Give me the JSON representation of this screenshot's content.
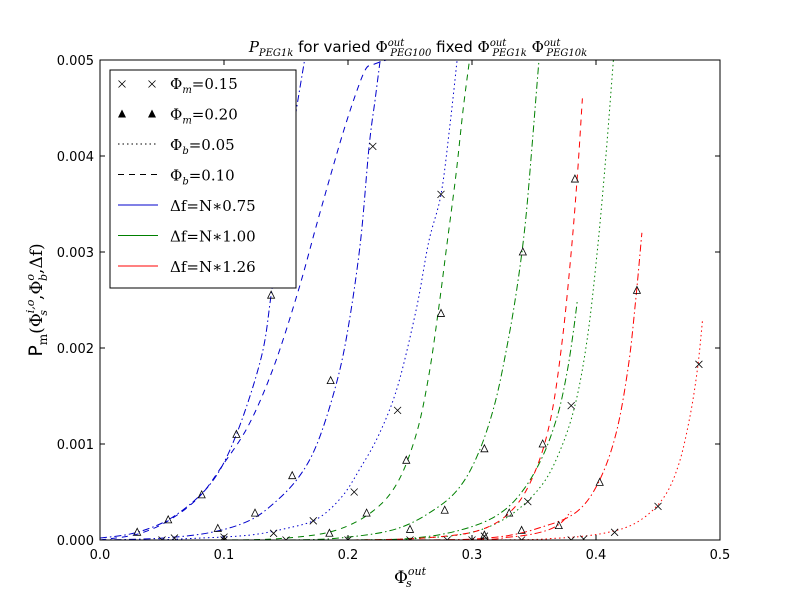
{
  "chart_data": {
    "type": "line",
    "title": "P_PEG1k for varied Φ^out_PEG100 fixed Φ^out_PEG1k Φ^out_PEG10k",
    "title_parts": {
      "p": "P",
      "p_sub": "PEG1k",
      "for_text": "for varied",
      "phi1": "Φ",
      "phi1_sup": "out",
      "phi1_sub": "PEG100",
      "fixed_text": "fixed",
      "phi2": "Φ",
      "phi2_sup": "out",
      "phi2_sub": "PEG1k",
      "phi3": "Φ",
      "phi3_sup": "out",
      "phi3_sub": "PEG10k"
    },
    "xlabel": "Φ_s^out",
    "xlabel_parts": {
      "base": "Φ",
      "sup": "out",
      "sub": "s"
    },
    "ylabel": "P_m(Φ_s^{i,o}, Φ_b^o, Δf)",
    "ylabel_parts": {
      "p": "P",
      "p_sub": "m",
      "open": "(Φ",
      "a_sup": "i,o",
      "a_sub": "s",
      "mid": ",Φ",
      "b_sup": "o",
      "b_sub": "b",
      "end": ",Δf)"
    },
    "xlim": [
      0.0,
      0.5
    ],
    "ylim": [
      0.0,
      0.005
    ],
    "x_ticks": [
      0.0,
      0.1,
      0.2,
      0.3,
      0.4,
      0.5
    ],
    "x_tick_labels": [
      "0.0",
      "0.1",
      "0.2",
      "0.3",
      "0.4",
      "0.5"
    ],
    "y_ticks": [
      0.0,
      0.001,
      0.002,
      0.003,
      0.004,
      0.005
    ],
    "y_tick_labels": [
      "0.000",
      "0.001",
      "0.002",
      "0.003",
      "0.004",
      "0.005"
    ],
    "grid": false,
    "legend_position": "top-left",
    "legend": [
      {
        "label": "Φm = 0.15",
        "base": "Φ",
        "sub": "m",
        "eq": "=0.15",
        "kind": "marker-x"
      },
      {
        "label": "Φm = 0.20",
        "base": "Φ",
        "sub": "m",
        "eq": "=0.20",
        "kind": "marker-triangle"
      },
      {
        "label": "Φb = 0.05",
        "base": "Φ",
        "sub": "b",
        "eq": "=0.05",
        "kind": "line-dotted"
      },
      {
        "label": "Φb = 0.10",
        "base": "Φ",
        "sub": "b",
        "eq": "=0.10",
        "kind": "line-dashed"
      },
      {
        "label": "Δf = N*0.75",
        "base": "Δf",
        "sub": "",
        "eq": "=N∗0.75",
        "kind": "line-blue"
      },
      {
        "label": "Δf = N*1.00",
        "base": "Δf",
        "sub": "",
        "eq": "=N∗1.00",
        "kind": "line-green"
      },
      {
        "label": "Δf = N*1.26",
        "base": "Δf",
        "sub": "",
        "eq": "=N∗1.26",
        "kind": "line-red"
      }
    ],
    "colors": {
      "blue": "#0000cc",
      "green": "#008000",
      "red": "#ff0000"
    },
    "series": [
      {
        "color": "blue",
        "style": "dashdot",
        "marker": "triangle",
        "x": [
          0.0,
          0.03,
          0.06,
          0.09,
          0.11,
          0.13,
          0.138,
          0.146,
          0.155,
          0.165
        ],
        "y": [
          2e-05,
          8e-05,
          0.00025,
          0.0006,
          0.0011,
          0.0019,
          0.00255,
          0.0033,
          0.0042,
          0.005
        ]
      },
      {
        "color": "blue",
        "style": "dashed",
        "marker": "triangle",
        "x": [
          0.0,
          0.03,
          0.055,
          0.08,
          0.1,
          0.12,
          0.14,
          0.16,
          0.175,
          0.186,
          0.195,
          0.205,
          0.214,
          0.22,
          0.226,
          0.231
        ],
        "y": [
          0.0,
          6e-05,
          0.0002,
          0.00045,
          0.0008,
          0.0012,
          0.0018,
          0.0026,
          0.0033,
          0.0038,
          0.0042,
          0.0046,
          0.0049,
          0.00495,
          0.00498,
          0.005
        ]
      },
      {
        "color": "blue",
        "style": "dotted",
        "marker": "x",
        "x": [
          0.0,
          0.04,
          0.08,
          0.12,
          0.15,
          0.175,
          0.195,
          0.21,
          0.225,
          0.24,
          0.255,
          0.265,
          0.275,
          0.282,
          0.288
        ],
        "y": [
          0.0,
          0.0,
          2e-05,
          5e-05,
          0.00012,
          0.00022,
          0.00045,
          0.00075,
          0.0011,
          0.0016,
          0.0024,
          0.0031,
          0.0036,
          0.0043,
          0.005
        ]
      },
      {
        "color": "blue",
        "style": "dashdot",
        "marker": "x",
        "x": [
          0.0,
          0.05,
          0.09,
          0.12,
          0.14,
          0.16,
          0.175,
          0.19,
          0.2,
          0.21,
          0.217,
          0.222,
          0.226
        ],
        "y": [
          0.0,
          2e-05,
          8e-05,
          0.0002,
          0.00038,
          0.00065,
          0.001,
          0.0016,
          0.0022,
          0.0031,
          0.0041,
          0.0046,
          0.005
        ]
      },
      {
        "color": "green",
        "style": "dashed",
        "marker": "triangle",
        "x": [
          0.0,
          0.1,
          0.15,
          0.19,
          0.22,
          0.24,
          0.255,
          0.265,
          0.273,
          0.28,
          0.287,
          0.293,
          0.298
        ],
        "y": [
          0.0,
          0.0,
          2e-05,
          0.0001,
          0.0003,
          0.0006,
          0.0011,
          0.0017,
          0.0024,
          0.0031,
          0.0038,
          0.0045,
          0.005
        ]
      },
      {
        "color": "green",
        "style": "dashdot",
        "marker": "triangle",
        "x": [
          0.0,
          0.15,
          0.2,
          0.24,
          0.27,
          0.29,
          0.305,
          0.318,
          0.328,
          0.336,
          0.343,
          0.349,
          0.354
        ],
        "y": [
          0.0,
          0.0,
          3e-05,
          0.00012,
          0.00032,
          0.00055,
          0.0009,
          0.0014,
          0.002,
          0.0026,
          0.0033,
          0.0042,
          0.005
        ]
      },
      {
        "color": "green",
        "style": "dotted",
        "marker": "x",
        "x": [
          0.0,
          0.2,
          0.26,
          0.3,
          0.33,
          0.355,
          0.37,
          0.383,
          0.393,
          0.401,
          0.408,
          0.414
        ],
        "y": [
          0.0,
          0.0,
          2e-05,
          8e-05,
          0.00025,
          0.00055,
          0.0009,
          0.0014,
          0.0021,
          0.003,
          0.004,
          0.005
        ]
      },
      {
        "color": "green",
        "style": "dashdot",
        "marker": "x",
        "x": [
          0.0,
          0.2,
          0.26,
          0.3,
          0.325,
          0.343,
          0.358,
          0.369,
          0.376,
          0.381,
          0.385
        ],
        "y": [
          0.0,
          0.0,
          3e-05,
          0.00014,
          0.0003,
          0.00055,
          0.0009,
          0.0013,
          0.0017,
          0.0021,
          0.0025
        ]
      },
      {
        "color": "red",
        "style": "dashed",
        "marker": "triangle",
        "x": [
          0.0,
          0.2,
          0.27,
          0.31,
          0.335,
          0.352,
          0.364,
          0.373,
          0.38,
          0.385,
          0.389
        ],
        "y": [
          0.0,
          0.0,
          3e-05,
          0.00012,
          0.00035,
          0.00075,
          0.0013,
          0.0021,
          0.003,
          0.0038,
          0.0046
        ]
      },
      {
        "color": "red",
        "style": "dashdot",
        "marker": "triangle",
        "x": [
          0.0,
          0.25,
          0.32,
          0.36,
          0.385,
          0.402,
          0.416,
          0.426,
          0.432,
          0.437
        ],
        "y": [
          0.0,
          0.0,
          3e-05,
          0.00015,
          0.0003,
          0.0006,
          0.0011,
          0.0018,
          0.0025,
          0.0032
        ]
      },
      {
        "color": "red",
        "style": "dotted",
        "marker": "x",
        "x": [
          0.0,
          0.3,
          0.37,
          0.41,
          0.435,
          0.455,
          0.467,
          0.476,
          0.482,
          0.486
        ],
        "y": [
          0.0,
          0.0,
          2e-05,
          8e-05,
          0.0002,
          0.00045,
          0.0008,
          0.0013,
          0.0018,
          0.0023
        ]
      },
      {
        "color": "red",
        "style": "dashdot",
        "marker": "x",
        "x": [
          0.0,
          0.28,
          0.33,
          0.355,
          0.37,
          0.38
        ],
        "y": [
          0.0,
          0.0,
          3e-05,
          8e-05,
          0.00016,
          0.0003
        ]
      }
    ],
    "markers": [
      {
        "shape": "triangle",
        "x": [
          0.03,
          0.055,
          0.082,
          0.11,
          0.138
        ],
        "y": [
          8e-05,
          0.00021,
          0.00047,
          0.0011,
          0.00255
        ]
      },
      {
        "shape": "triangle",
        "x": [
          0.095,
          0.125,
          0.155,
          0.186
        ],
        "y": [
          0.00012,
          0.00028,
          0.00067,
          0.00166
        ]
      },
      {
        "shape": "triangle",
        "x": [
          0.185,
          0.215,
          0.247,
          0.275
        ],
        "y": [
          7e-05,
          0.00028,
          0.00083,
          0.00236
        ]
      },
      {
        "shape": "triangle",
        "x": [
          0.25,
          0.278,
          0.31,
          0.341
        ],
        "y": [
          0.00011,
          0.00031,
          0.00095,
          0.003
        ]
      },
      {
        "shape": "triangle",
        "x": [
          0.33,
          0.357,
          0.383
        ],
        "y": [
          0.00028,
          0.001,
          0.00376
        ]
      },
      {
        "shape": "triangle",
        "x": [
          0.31,
          0.34,
          0.37,
          0.403,
          0.433
        ],
        "y": [
          5e-05,
          0.0001,
          0.00015,
          0.0006,
          0.0026
        ]
      },
      {
        "shape": "x",
        "x": [
          0.06,
          0.1,
          0.14,
          0.172,
          0.205,
          0.24,
          0.275
        ],
        "y": [
          2e-05,
          3e-05,
          7e-05,
          0.0002,
          0.0005,
          0.00135,
          0.0036
        ]
      },
      {
        "shape": "x",
        "x": [
          0.22
        ],
        "y": [
          0.0041
        ]
      },
      {
        "shape": "x",
        "x": [
          0.28,
          0.31,
          0.345,
          0.38
        ],
        "y": [
          0.0,
          4e-05,
          0.0004,
          0.0014
        ]
      },
      {
        "shape": "x",
        "x": [
          0.39,
          0.415,
          0.45,
          0.483
        ],
        "y": [
          1e-05,
          8e-05,
          0.00035,
          0.00183
        ]
      },
      {
        "shape": "x",
        "x": [
          0.05,
          0.1,
          0.15,
          0.2,
          0.25,
          0.3,
          0.34,
          0.38
        ],
        "y": [
          0.0,
          0.0,
          0.0,
          0.0,
          0.0,
          0.0,
          0.0,
          0.0
        ]
      }
    ]
  }
}
